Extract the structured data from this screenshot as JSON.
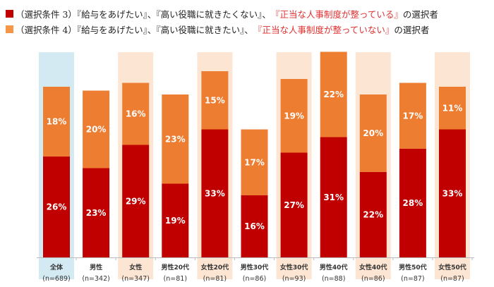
{
  "legend": [
    {
      "prefix": "（選択条件 3）『給与をあげたい』、『高い役職に就きたくない』、",
      "highlight": "『正当な人事制度が整っている』",
      "suffix": " の選択者",
      "color": "#c00000"
    },
    {
      "prefix": "（選択条件 4）『給与をあげたい』、『高い役職に就きたい』、",
      "highlight": "『正当な人事制度が整っていない』",
      "suffix": " の選択者",
      "color": "#ed7d31"
    }
  ],
  "colors": {
    "series1": "#c00000",
    "series2": "#ed7d31",
    "total_bg": "#d3eaf2",
    "female_bg": "#fde5d3"
  },
  "chart_data": {
    "type": "bar",
    "stacked": true,
    "categories": [
      "全体",
      "男性",
      "女性",
      "男性20代",
      "女性20代",
      "男性30代",
      "女性30代",
      "男性40代",
      "女性40代",
      "男性50代",
      "女性50代"
    ],
    "n_labels": [
      "(n=689)",
      "(n=342)",
      "(n=347)",
      "(n=81)",
      "(n=81)",
      "(n=86)",
      "(n=93)",
      "(n=88)",
      "(n=86)",
      "(n=87)",
      "(n=87)"
    ],
    "highlight": [
      "total",
      "none",
      "female",
      "none",
      "female",
      "none",
      "female",
      "none",
      "female",
      "none",
      "female"
    ],
    "series": [
      {
        "name": "（選択条件 3）",
        "values": [
          26,
          23,
          29,
          19,
          33,
          16,
          27,
          31,
          22,
          28,
          33
        ]
      },
      {
        "name": "（選択条件 4）",
        "values": [
          18,
          20,
          16,
          23,
          15,
          17,
          19,
          22,
          20,
          17,
          11
        ]
      }
    ],
    "unit": "%",
    "ylim": [
      0,
      53
    ]
  }
}
